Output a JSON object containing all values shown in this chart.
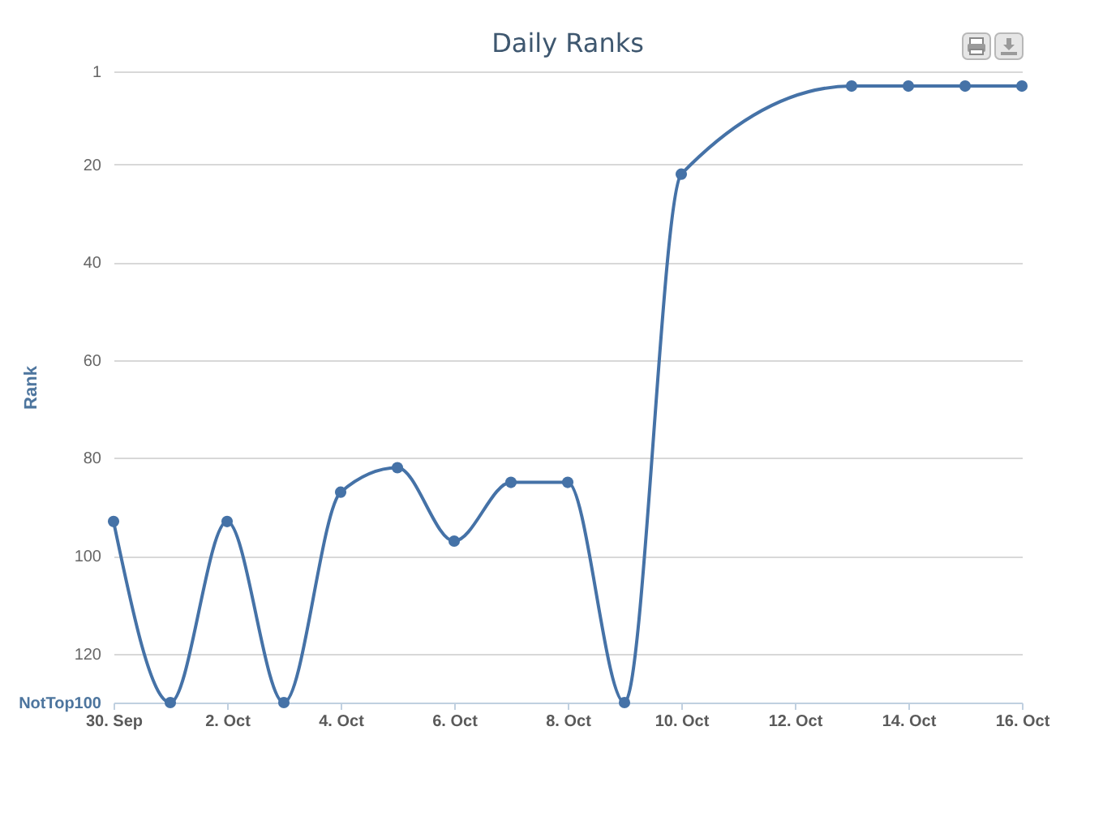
{
  "chart_data": {
    "type": "line",
    "title": "Daily Ranks",
    "ylabel": "Rank",
    "x": [
      "--09-30",
      "--10-01",
      "--10-02",
      "--10-03",
      "--10-04",
      "--10-05",
      "--10-06",
      "--10-07",
      "--10-08",
      "--10-09",
      "--10-10",
      "--10-13",
      "--10-14",
      "--10-15",
      "--10-16"
    ],
    "series": [
      {
        "color": "#4572a7",
        "values": [
          93,
          130,
          93,
          130,
          87,
          82,
          97,
          85,
          85,
          130,
          22,
          4,
          4,
          4,
          4
        ]
      }
    ],
    "xlim": [
      "--09-30",
      "--10-16"
    ],
    "xticks": [
      {
        "value": "--09-30",
        "label": "30. Sep"
      },
      {
        "value": "--10-02",
        "label": "2. Oct"
      },
      {
        "value": "--10-04",
        "label": "4. Oct"
      },
      {
        "value": "--10-06",
        "label": "6. Oct"
      },
      {
        "value": "--10-08",
        "label": "8. Oct"
      },
      {
        "value": "--10-10",
        "label": "10. Oct"
      },
      {
        "value": "--10-12",
        "label": "12. Oct"
      },
      {
        "value": "--10-14",
        "label": "14. Oct"
      },
      {
        "value": "--10-16",
        "label": "16. Oct"
      }
    ],
    "ylim": [
      130,
      1
    ],
    "yticks": [
      1,
      20,
      40,
      60,
      80,
      100,
      120,
      {
        "value": 130,
        "label": "NotTop100"
      }
    ],
    "grid": "y",
    "marker": "circle"
  }
}
